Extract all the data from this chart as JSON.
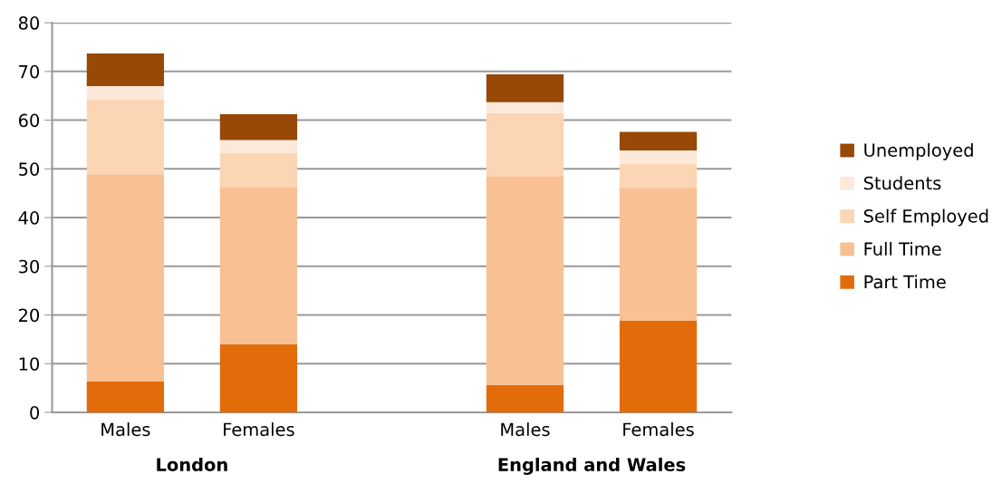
{
  "chart_data": {
    "type": "bar",
    "stacked": true,
    "categories": [
      "Males",
      "Females",
      null,
      "Males",
      "Females"
    ],
    "series": [
      {
        "name": "Part Time",
        "color": "#e36c0a",
        "values": [
          6.3,
          14.0,
          null,
          5.6,
          18.9
        ]
      },
      {
        "name": "Full Time",
        "color": "#f9c093",
        "values": [
          42.6,
          32.3,
          null,
          42.9,
          27.2
        ]
      },
      {
        "name": "Self Employed",
        "color": "#fcd5b5",
        "values": [
          15.4,
          6.9,
          null,
          13.0,
          5.0
        ]
      },
      {
        "name": "Students",
        "color": "#fde9d9",
        "values": [
          2.7,
          2.7,
          null,
          2.2,
          2.7
        ]
      },
      {
        "name": "Unemployed",
        "color": "#984807",
        "values": [
          6.7,
          5.3,
          null,
          5.7,
          3.8
        ]
      }
    ],
    "ylim": [
      0,
      80
    ],
    "yticks": [
      0,
      10,
      20,
      30,
      40,
      50,
      60,
      70,
      80
    ],
    "grid": "y",
    "legend": "right",
    "annotations": [
      "London",
      "England and Wales"
    ]
  }
}
